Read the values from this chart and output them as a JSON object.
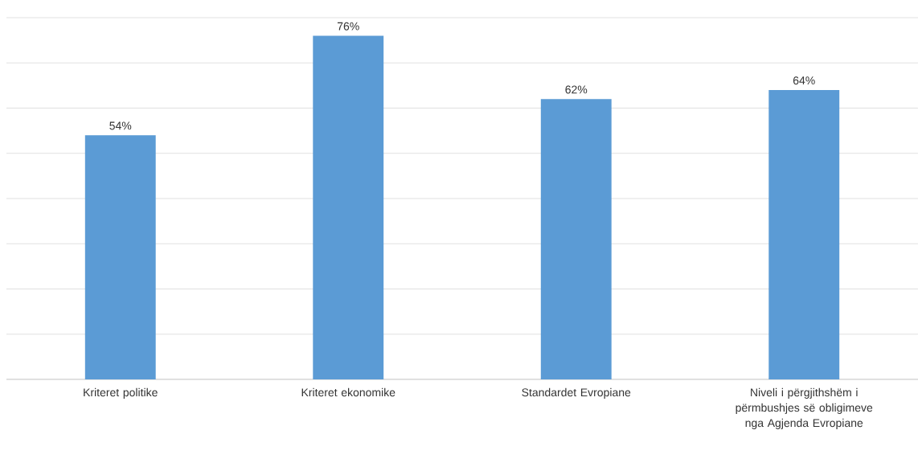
{
  "chart_data": {
    "type": "bar",
    "categories": [
      "Kriteret politike",
      "Kriteret ekonomike",
      "Standardet Evropiane",
      "Niveli i përgjithshëm i përmbushjes së obligimeve nga Agjenda Evropiane"
    ],
    "values": [
      54,
      76,
      62,
      64
    ],
    "value_labels": [
      "54%",
      "76%",
      "62%",
      "64%"
    ],
    "color": "#5b9bd5",
    "ylim": [
      0,
      80
    ],
    "yticks": [
      {
        "value": 0,
        "label": null
      },
      {
        "value": 10,
        "label": null
      },
      {
        "value": 20,
        "label": null
      },
      {
        "value": 30,
        "label": null
      },
      {
        "value": 40,
        "label": null
      },
      {
        "value": 50,
        "label": null
      },
      {
        "value": 60,
        "label": null
      },
      {
        "value": 70,
        "label": null
      },
      {
        "value": 80,
        "label": null
      }
    ],
    "grid": "y",
    "tick_labels": "x"
  }
}
